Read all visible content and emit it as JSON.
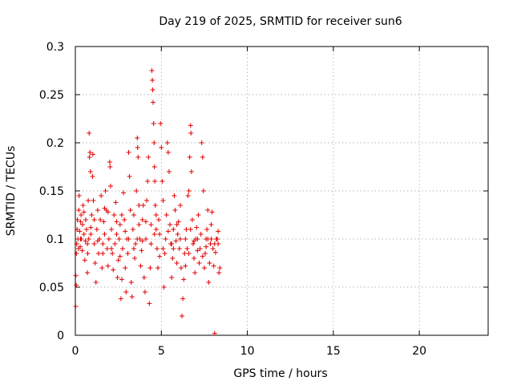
{
  "chart_data": {
    "type": "scatter",
    "title": "Day 219 of 2025, SRMTID for receiver sun6",
    "xlabel": "GPS time / hours",
    "ylabel": "SRMTID / TECUs",
    "xlim": [
      0,
      24
    ],
    "ylim": [
      0,
      0.3
    ],
    "xticks": [
      0,
      5,
      10,
      15,
      20
    ],
    "yticks": [
      0,
      0.05,
      0.1,
      0.15,
      0.2,
      0.25,
      0.3
    ],
    "xtick_labels": [
      "0",
      "5",
      "10",
      "15",
      "20"
    ],
    "ytick_labels": [
      "0",
      "0.05",
      "0.1",
      "0.15",
      "0.2",
      "0.25",
      "0.3"
    ],
    "grid": true,
    "marker": "+",
    "color": "#e00000",
    "series": [
      {
        "name": "SRMTID",
        "points": [
          [
            0.02,
            0.03
          ],
          [
            0.03,
            0.062
          ],
          [
            0.05,
            0.052
          ],
          [
            0.06,
            0.085
          ],
          [
            0.08,
            0.095
          ],
          [
            0.1,
            0.11
          ],
          [
            0.12,
            0.12
          ],
          [
            0.15,
            0.1
          ],
          [
            0.18,
            0.09
          ],
          [
            0.2,
            0.13
          ],
          [
            0.22,
            0.145
          ],
          [
            0.25,
            0.108
          ],
          [
            0.28,
            0.092
          ],
          [
            0.3,
            0.118
          ],
          [
            0.33,
            0.125
          ],
          [
            0.35,
            0.1
          ],
          [
            0.4,
            0.088
          ],
          [
            0.42,
            0.115
          ],
          [
            0.45,
            0.135
          ],
          [
            0.5,
            0.105
          ],
          [
            0.55,
            0.078
          ],
          [
            0.58,
            0.098
          ],
          [
            0.6,
            0.12
          ],
          [
            0.65,
            0.11
          ],
          [
            0.7,
            0.065
          ],
          [
            0.72,
            0.085
          ],
          [
            0.75,
            0.14
          ],
          [
            0.78,
            0.1
          ],
          [
            0.8,
            0.21
          ],
          [
            0.82,
            0.185
          ],
          [
            0.85,
            0.19
          ],
          [
            0.88,
            0.17
          ],
          [
            0.9,
            0.105
          ],
          [
            0.95,
            0.125
          ],
          [
            1.0,
            0.165
          ],
          [
            1.02,
            0.188
          ],
          [
            1.05,
            0.14
          ],
          [
            1.1,
            0.095
          ],
          [
            1.15,
            0.075
          ],
          [
            1.2,
            0.055
          ],
          [
            1.25,
            0.11
          ],
          [
            1.3,
            0.13
          ],
          [
            1.35,
            0.085
          ],
          [
            1.4,
            0.1
          ],
          [
            1.45,
            0.12
          ],
          [
            1.5,
            0.145
          ],
          [
            1.55,
            0.07
          ],
          [
            1.6,
            0.095
          ],
          [
            1.65,
            0.118
          ],
          [
            1.7,
            0.105
          ],
          [
            1.75,
            0.15
          ],
          [
            1.8,
            0.13
          ],
          [
            1.85,
            0.09
          ],
          [
            1.9,
            0.072
          ],
          [
            1.95,
            0.1
          ],
          [
            2.0,
            0.18
          ],
          [
            2.02,
            0.175
          ],
          [
            2.05,
            0.155
          ],
          [
            2.1,
            0.11
          ],
          [
            2.15,
            0.085
          ],
          [
            2.2,
            0.068
          ],
          [
            2.25,
            0.125
          ],
          [
            2.3,
            0.095
          ],
          [
            2.35,
            0.138
          ],
          [
            2.4,
            0.105
          ],
          [
            2.45,
            0.06
          ],
          [
            2.5,
            0.078
          ],
          [
            2.55,
            0.1
          ],
          [
            2.6,
            0.115
          ],
          [
            2.65,
            0.038
          ],
          [
            2.7,
            0.058
          ],
          [
            2.75,
            0.09
          ],
          [
            2.8,
            0.148
          ],
          [
            2.85,
            0.12
          ],
          [
            2.9,
            0.07
          ],
          [
            2.95,
            0.045
          ],
          [
            3.0,
            0.1
          ],
          [
            3.05,
            0.085
          ],
          [
            3.1,
            0.19
          ],
          [
            3.15,
            0.165
          ],
          [
            3.2,
            0.13
          ],
          [
            3.25,
            0.055
          ],
          [
            3.3,
            0.04
          ],
          [
            3.35,
            0.11
          ],
          [
            3.4,
            0.125
          ],
          [
            3.45,
            0.08
          ],
          [
            3.5,
            0.095
          ],
          [
            3.55,
            0.15
          ],
          [
            3.6,
            0.205
          ],
          [
            3.62,
            0.195
          ],
          [
            3.65,
            0.185
          ],
          [
            3.7,
            0.115
          ],
          [
            3.75,
            0.1
          ],
          [
            3.8,
            0.072
          ],
          [
            3.85,
            0.088
          ],
          [
            3.9,
            0.12
          ],
          [
            3.95,
            0.135
          ],
          [
            4.0,
            0.06
          ],
          [
            4.05,
            0.045
          ],
          [
            4.1,
            0.1
          ],
          [
            4.15,
            0.14
          ],
          [
            4.2,
            0.16
          ],
          [
            4.25,
            0.185
          ],
          [
            4.3,
            0.033
          ],
          [
            4.35,
            0.07
          ],
          [
            4.4,
            0.095
          ],
          [
            4.45,
            0.275
          ],
          [
            4.48,
            0.265
          ],
          [
            4.5,
            0.255
          ],
          [
            4.52,
            0.242
          ],
          [
            4.55,
            0.22
          ],
          [
            4.58,
            0.2
          ],
          [
            4.6,
            0.175
          ],
          [
            4.62,
            0.16
          ],
          [
            4.65,
            0.135
          ],
          [
            4.7,
            0.11
          ],
          [
            4.75,
            0.09
          ],
          [
            4.8,
            0.07
          ],
          [
            4.85,
            0.12
          ],
          [
            4.9,
            0.105
          ],
          [
            4.95,
            0.22
          ],
          [
            5.0,
            0.195
          ],
          [
            5.05,
            0.16
          ],
          [
            5.1,
            0.14
          ],
          [
            5.15,
            0.05
          ],
          [
            5.2,
            0.085
          ],
          [
            5.25,
            0.1
          ],
          [
            5.3,
            0.125
          ],
          [
            5.35,
            0.2
          ],
          [
            5.4,
            0.19
          ],
          [
            5.45,
            0.17
          ],
          [
            5.5,
            0.115
          ],
          [
            5.55,
            0.095
          ],
          [
            5.6,
            0.06
          ],
          [
            5.65,
            0.08
          ],
          [
            5.7,
            0.11
          ],
          [
            5.75,
            0.145
          ],
          [
            5.8,
            0.13
          ],
          [
            5.85,
            0.098
          ],
          [
            5.9,
            0.075
          ],
          [
            5.95,
            0.105
          ],
          [
            6.0,
            0.118
          ],
          [
            6.05,
            0.09
          ],
          [
            6.1,
            0.135
          ],
          [
            6.15,
            0.07
          ],
          [
            6.2,
            0.02
          ],
          [
            6.25,
            0.038
          ],
          [
            6.3,
            0.058
          ],
          [
            6.35,
            0.085
          ],
          [
            6.4,
            0.1
          ],
          [
            6.45,
            0.11
          ],
          [
            6.5,
            0.09
          ],
          [
            6.55,
            0.145
          ],
          [
            6.6,
            0.15
          ],
          [
            6.65,
            0.185
          ],
          [
            6.7,
            0.218
          ],
          [
            6.72,
            0.21
          ],
          [
            6.75,
            0.17
          ],
          [
            6.8,
            0.12
          ],
          [
            6.85,
            0.095
          ],
          [
            6.9,
            0.08
          ],
          [
            6.95,
            0.065
          ],
          [
            7.0,
            0.1
          ],
          [
            7.05,
            0.112
          ],
          [
            7.1,
            0.088
          ],
          [
            7.15,
            0.125
          ],
          [
            7.2,
            0.075
          ],
          [
            7.25,
            0.09
          ],
          [
            7.3,
            0.105
          ],
          [
            7.35,
            0.2
          ],
          [
            7.4,
            0.185
          ],
          [
            7.45,
            0.15
          ],
          [
            7.5,
            0.07
          ],
          [
            7.55,
            0.085
          ],
          [
            7.6,
            0.1
          ],
          [
            7.65,
            0.11
          ],
          [
            7.7,
            0.13
          ],
          [
            7.75,
            0.055
          ],
          [
            7.8,
            0.075
          ],
          [
            7.85,
            0.095
          ],
          [
            7.9,
            0.115
          ],
          [
            7.95,
            0.128
          ],
          [
            8.0,
            0.09
          ],
          [
            8.05,
            0.072
          ],
          [
            8.1,
            0.002
          ],
          [
            8.15,
            0.086
          ],
          [
            8.2,
            0.1
          ],
          [
            8.25,
            0.1
          ],
          [
            8.3,
            0.108
          ],
          [
            8.35,
            0.065
          ],
          [
            8.4,
            0.07
          ],
          [
            0.3,
            0.1
          ],
          [
            0.7,
            0.095
          ],
          [
            1.1,
            0.12
          ],
          [
            1.6,
            0.085
          ],
          [
            2.1,
            0.09
          ],
          [
            2.6,
            0.082
          ],
          [
            3.1,
            0.1
          ],
          [
            3.6,
            0.1
          ],
          [
            4.1,
            0.118
          ],
          [
            4.6,
            0.105
          ],
          [
            5.1,
            0.09
          ],
          [
            5.6,
            0.095
          ],
          [
            6.1,
            0.1
          ],
          [
            6.6,
            0.085
          ],
          [
            7.1,
            0.1
          ],
          [
            7.6,
            0.092
          ],
          [
            8.1,
            0.095
          ],
          [
            0.5,
            0.128
          ],
          [
            1.3,
            0.098
          ],
          [
            1.9,
            0.128
          ],
          [
            2.4,
            0.118
          ],
          [
            2.9,
            0.108
          ],
          [
            3.4,
            0.09
          ],
          [
            3.9,
            0.098
          ],
          [
            4.4,
            0.115
          ],
          [
            4.9,
            0.082
          ],
          [
            5.4,
            0.108
          ],
          [
            5.9,
            0.115
          ],
          [
            6.4,
            0.072
          ],
          [
            6.9,
            0.098
          ],
          [
            7.4,
            0.082
          ],
          [
            7.9,
            0.1
          ],
          [
            0.9,
            0.112
          ],
          [
            1.7,
            0.132
          ],
          [
            2.7,
            0.125
          ],
          [
            3.7,
            0.135
          ],
          [
            4.7,
            0.125
          ],
          [
            5.7,
            0.09
          ],
          [
            6.7,
            0.11
          ],
          [
            7.7,
            0.1
          ],
          [
            8.3,
            0.095
          ]
        ]
      }
    ]
  }
}
